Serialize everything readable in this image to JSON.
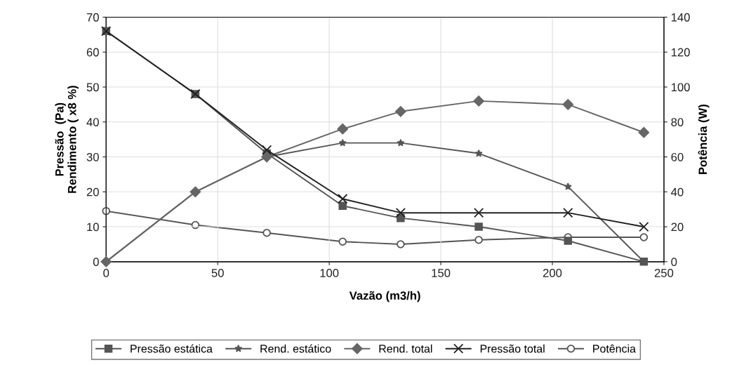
{
  "chart_data": {
    "type": "line",
    "xlabel": "Vazão (m3/h)",
    "ylabel": "Pressão  (Pa)\nRendimento ( x8 %)",
    "y2label": "Potência (W)",
    "x": [
      0,
      40,
      72,
      106,
      132,
      167,
      207,
      241
    ],
    "xlim": [
      0,
      250
    ],
    "xticks": [
      0,
      50,
      100,
      150,
      200,
      250
    ],
    "ylim": [
      0,
      70
    ],
    "yticks": [
      0,
      10,
      20,
      30,
      40,
      50,
      60,
      70
    ],
    "y2lim": [
      0,
      140
    ],
    "y2ticks": [
      0,
      20,
      40,
      60,
      80,
      100,
      120,
      140
    ],
    "grid": true,
    "legend": "bottom",
    "line_style": "solid",
    "series": [
      {
        "name": "Pressão estática",
        "color": "#555555",
        "marker": "square",
        "values": [
          66,
          48,
          31,
          16,
          12.5,
          10,
          6,
          0
        ]
      },
      {
        "name": "Rend. estático",
        "color": "#555555",
        "marker": "star",
        "values": [
          0,
          20,
          30,
          34,
          34,
          31,
          21.5,
          0
        ]
      },
      {
        "name": "Rend. total",
        "color": "#666666",
        "marker": "diamond",
        "values": [
          0,
          20,
          30,
          38,
          43,
          46,
          45,
          37
        ]
      },
      {
        "name": "Pressão total",
        "color": "#222222",
        "marker": "cross",
        "values": [
          66,
          48,
          32,
          18,
          14,
          14,
          14,
          10
        ]
      },
      {
        "name": "Potência",
        "color": "#555555",
        "marker": "circle",
        "axis": "y2",
        "values": [
          29,
          21,
          16.5,
          11.5,
          10,
          12.5,
          14,
          14
        ]
      }
    ]
  }
}
